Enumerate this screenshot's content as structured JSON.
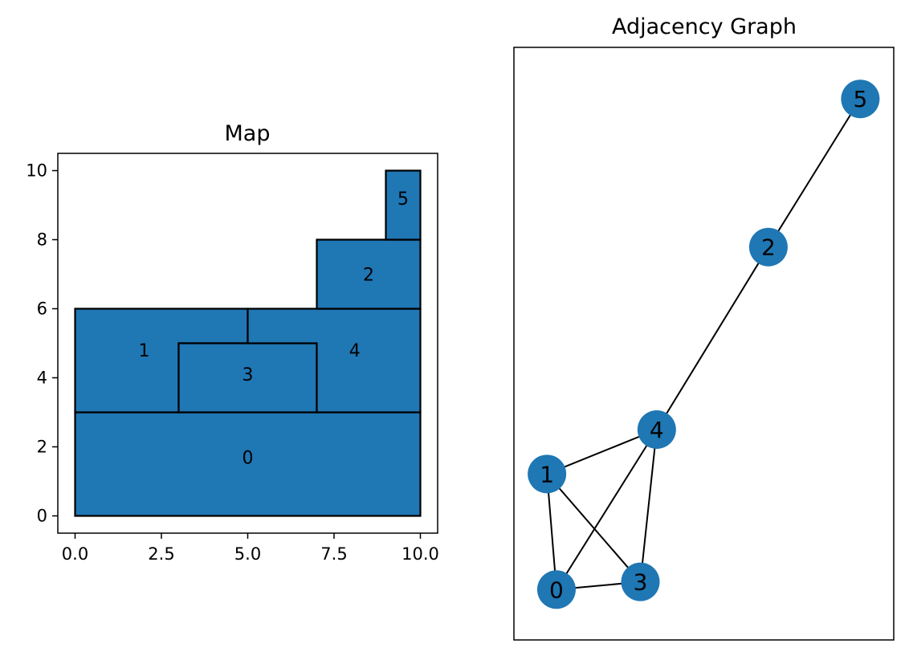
{
  "colors": {
    "fill": "#1f77b4",
    "edge": "#000000",
    "background": "#ffffff"
  },
  "map": {
    "title": "Map",
    "xlim": [
      -0.5,
      10.5
    ],
    "ylim": [
      -0.5,
      10.5
    ],
    "x_ticks": [
      {
        "value": 0.0,
        "label": "0.0"
      },
      {
        "value": 2.5,
        "label": "2.5"
      },
      {
        "value": 5.0,
        "label": "5.0"
      },
      {
        "value": 7.5,
        "label": "7.5"
      },
      {
        "value": 10.0,
        "label": "10.0"
      }
    ],
    "y_ticks": [
      {
        "value": 0,
        "label": "0"
      },
      {
        "value": 2,
        "label": "2"
      },
      {
        "value": 4,
        "label": "4"
      },
      {
        "value": 6,
        "label": "6"
      },
      {
        "value": 8,
        "label": "8"
      },
      {
        "value": 10,
        "label": "10"
      }
    ],
    "regions": [
      {
        "id": "0",
        "label": "0",
        "polygon": [
          [
            0,
            0
          ],
          [
            10,
            0
          ],
          [
            10,
            3
          ],
          [
            0,
            3
          ]
        ],
        "label_pos": [
          5,
          1.7
        ]
      },
      {
        "id": "1",
        "label": "1",
        "polygon": [
          [
            0,
            3
          ],
          [
            3,
            3
          ],
          [
            3,
            5
          ],
          [
            5,
            5
          ],
          [
            5,
            6
          ],
          [
            0,
            6
          ]
        ],
        "label_pos": [
          2,
          4.8
        ]
      },
      {
        "id": "3",
        "label": "3",
        "polygon": [
          [
            3,
            3
          ],
          [
            7,
            3
          ],
          [
            7,
            5
          ],
          [
            3,
            5
          ]
        ],
        "label_pos": [
          5,
          4.1
        ]
      },
      {
        "id": "4",
        "label": "4",
        "polygon": [
          [
            5,
            5
          ],
          [
            7,
            5
          ],
          [
            7,
            3
          ],
          [
            10,
            3
          ],
          [
            10,
            6
          ],
          [
            5,
            6
          ]
        ],
        "label_pos": [
          8.1,
          4.8
        ]
      },
      {
        "id": "2",
        "label": "2",
        "polygon": [
          [
            7,
            6
          ],
          [
            10,
            6
          ],
          [
            10,
            8
          ],
          [
            7,
            8
          ]
        ],
        "label_pos": [
          8.5,
          7.0
        ]
      },
      {
        "id": "5",
        "label": "5",
        "polygon": [
          [
            9,
            8
          ],
          [
            10,
            8
          ],
          [
            10,
            10
          ],
          [
            9,
            10
          ]
        ],
        "label_pos": [
          9.5,
          9.2
        ]
      }
    ]
  },
  "graph": {
    "title": "Adjacency Graph",
    "xlim": [
      0,
      1
    ],
    "ylim": [
      0,
      1
    ],
    "nodes": [
      {
        "id": "0",
        "label": "0",
        "x": 0.112,
        "y": 0.085
      },
      {
        "id": "1",
        "label": "1",
        "x": 0.087,
        "y": 0.28
      },
      {
        "id": "2",
        "label": "2",
        "x": 0.67,
        "y": 0.663
      },
      {
        "id": "3",
        "label": "3",
        "x": 0.333,
        "y": 0.098
      },
      {
        "id": "4",
        "label": "4",
        "x": 0.376,
        "y": 0.355
      },
      {
        "id": "5",
        "label": "5",
        "x": 0.912,
        "y": 0.913
      }
    ],
    "edges": [
      [
        "0",
        "1"
      ],
      [
        "0",
        "3"
      ],
      [
        "0",
        "4"
      ],
      [
        "1",
        "3"
      ],
      [
        "1",
        "4"
      ],
      [
        "3",
        "4"
      ],
      [
        "4",
        "2"
      ],
      [
        "2",
        "5"
      ]
    ]
  }
}
